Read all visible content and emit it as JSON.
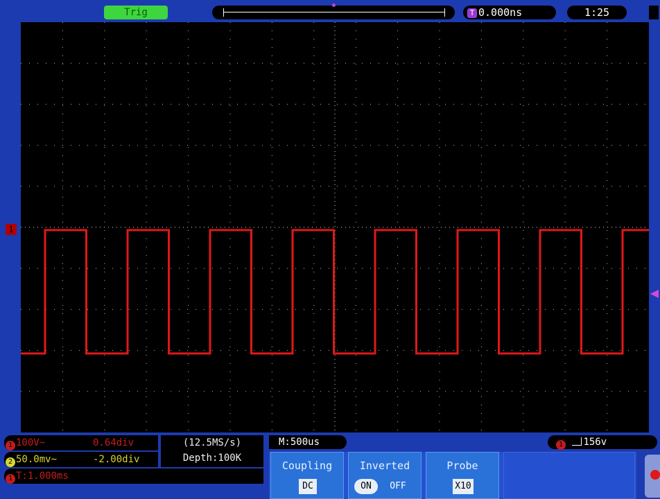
{
  "top": {
    "status": "Trig",
    "trigger_position": "0.000ns",
    "trigger_badge": "T",
    "clock": "1:25"
  },
  "screen": {
    "ch1_marker": "1",
    "trigger_marker": "T",
    "grid": {
      "divisions_x": 15,
      "divisions_y": 10
    },
    "waveform_color": "#e01818",
    "waveform_duty": 0.5,
    "waveform_cycles": 7.5
  },
  "info": {
    "ch1_scale": "100V~",
    "ch1_offset": "0.64div",
    "ch2_scale": "50.0mv~",
    "ch2_offset": "-2.00div",
    "ch1_badge": "1",
    "ch2_badge": "2",
    "time": "T:1.000ms",
    "sample_rate": "(12.5MS/s)",
    "depth": "Depth:100K",
    "timebase": "M:500us",
    "trigger_level": "156v"
  },
  "menu": {
    "coupling_title": "Coupling",
    "coupling_value": "DC",
    "inverted_title": "Inverted",
    "inverted_on": "ON",
    "inverted_off": "OFF",
    "probe_title": "Probe",
    "probe_value": "X10"
  },
  "colors": {
    "background": "#1d3bb0",
    "ch1": "#c51c1c",
    "ch2": "#d6d630",
    "trigger": "#9a3ad0"
  }
}
